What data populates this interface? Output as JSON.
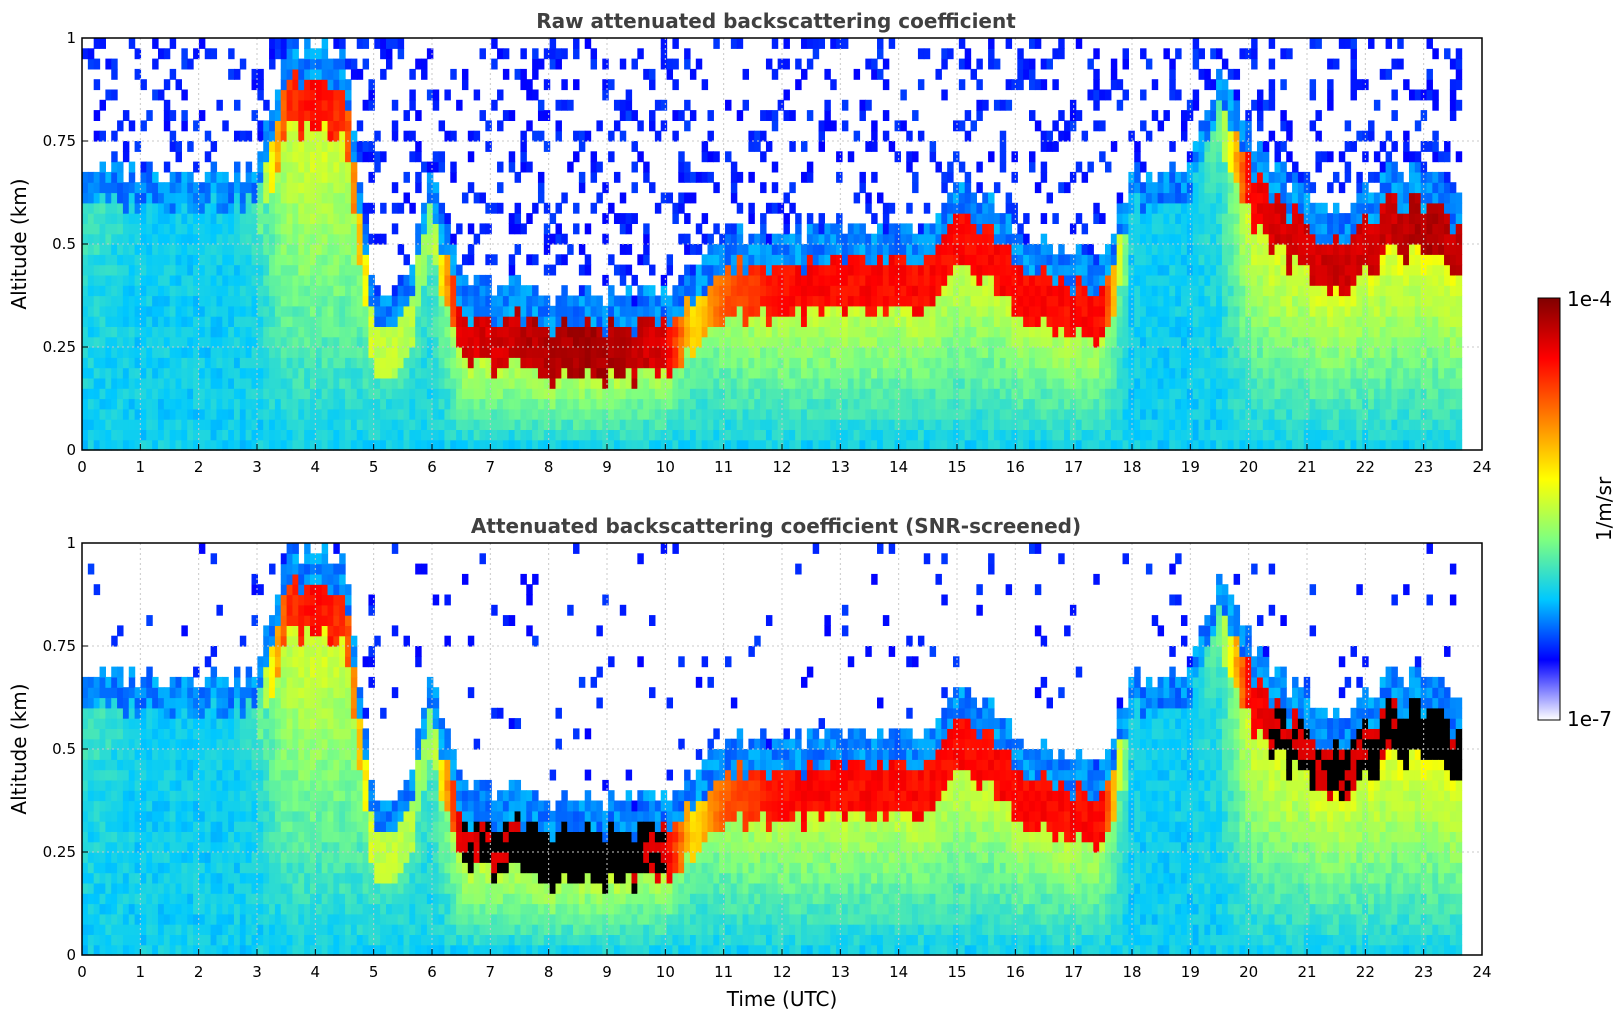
{
  "chart_data": [
    {
      "type": "heatmap",
      "title": "Raw attenuated backscattering coefficient",
      "xlabel": "",
      "ylabel": "Altitude (km)",
      "xlim": [
        0,
        24
      ],
      "ylim": [
        0,
        1
      ],
      "xticks": [
        "0",
        "1",
        "2",
        "3",
        "4",
        "5",
        "6",
        "7",
        "8",
        "9",
        "10",
        "11",
        "12",
        "13",
        "14",
        "15",
        "16",
        "17",
        "18",
        "19",
        "20",
        "21",
        "22",
        "23",
        "24"
      ],
      "yticks": [
        "0",
        "0.25",
        "0.5",
        "0.75",
        "1"
      ],
      "grid": true,
      "screened": false,
      "data_end_hour": 23.65,
      "layers": {
        "hours": [
          0,
          0.5,
          1,
          1.5,
          2,
          2.5,
          3,
          3.5,
          4,
          4.5,
          5,
          5.5,
          6,
          6.5,
          7,
          7.5,
          8,
          8.5,
          9,
          9.5,
          10,
          10.5,
          11,
          11.5,
          12,
          12.5,
          13,
          13.5,
          14,
          14.5,
          15,
          15.5,
          16,
          16.5,
          17,
          17.5,
          18,
          18.5,
          19,
          19.5,
          20,
          20.5,
          21,
          21.5,
          22,
          22.5,
          23,
          23.5
        ],
        "layer_top_km": [
          0.6,
          0.6,
          0.6,
          0.6,
          0.6,
          0.6,
          0.6,
          0.9,
          0.9,
          0.9,
          0.3,
          0.3,
          0.6,
          0.32,
          0.32,
          0.32,
          0.3,
          0.3,
          0.3,
          0.3,
          0.32,
          0.35,
          0.45,
          0.45,
          0.45,
          0.45,
          0.45,
          0.45,
          0.45,
          0.45,
          0.55,
          0.55,
          0.45,
          0.42,
          0.4,
          0.38,
          0.6,
          0.6,
          0.6,
          0.85,
          0.7,
          0.6,
          0.55,
          0.5,
          0.55,
          0.6,
          0.6,
          0.55
        ],
        "intensity": [
          0.35,
          0.35,
          0.3,
          0.3,
          0.3,
          0.3,
          0.35,
          0.8,
          0.85,
          0.8,
          0.5,
          0.5,
          0.45,
          0.9,
          0.9,
          0.92,
          0.95,
          0.95,
          0.95,
          0.92,
          0.9,
          0.6,
          0.75,
          0.8,
          0.85,
          0.85,
          0.85,
          0.85,
          0.85,
          0.85,
          0.85,
          0.85,
          0.85,
          0.85,
          0.85,
          0.85,
          0.3,
          0.3,
          0.3,
          0.4,
          0.85,
          0.9,
          0.9,
          0.92,
          0.9,
          0.92,
          0.95,
          0.92
        ]
      }
    },
    {
      "type": "heatmap",
      "title": "Attenuated backscattering coefficient (SNR-screened)",
      "xlabel": "Time (UTC)",
      "ylabel": "Altitude (km)",
      "xlim": [
        0,
        24
      ],
      "ylim": [
        0,
        1
      ],
      "xticks": [
        "0",
        "1",
        "2",
        "3",
        "4",
        "5",
        "6",
        "7",
        "8",
        "9",
        "10",
        "11",
        "12",
        "13",
        "14",
        "15",
        "16",
        "17",
        "18",
        "19",
        "20",
        "21",
        "22",
        "23",
        "24"
      ],
      "yticks": [
        "0",
        "0.25",
        "0.5",
        "0.75",
        "1"
      ],
      "grid": true,
      "screened": true,
      "data_end_hour": 23.65,
      "layers": {
        "hours": [
          0,
          0.5,
          1,
          1.5,
          2,
          2.5,
          3,
          3.5,
          4,
          4.5,
          5,
          5.5,
          6,
          6.5,
          7,
          7.5,
          8,
          8.5,
          9,
          9.5,
          10,
          10.5,
          11,
          11.5,
          12,
          12.5,
          13,
          13.5,
          14,
          14.5,
          15,
          15.5,
          16,
          16.5,
          17,
          17.5,
          18,
          18.5,
          19,
          19.5,
          20,
          20.5,
          21,
          21.5,
          22,
          22.5,
          23,
          23.5
        ],
        "layer_top_km": [
          0.6,
          0.6,
          0.6,
          0.6,
          0.6,
          0.6,
          0.6,
          0.9,
          0.9,
          0.9,
          0.3,
          0.3,
          0.6,
          0.32,
          0.32,
          0.32,
          0.3,
          0.3,
          0.3,
          0.3,
          0.32,
          0.35,
          0.45,
          0.45,
          0.45,
          0.45,
          0.45,
          0.45,
          0.45,
          0.45,
          0.55,
          0.55,
          0.45,
          0.42,
          0.4,
          0.38,
          0.6,
          0.6,
          0.6,
          0.85,
          0.7,
          0.6,
          0.55,
          0.5,
          0.55,
          0.6,
          0.6,
          0.55
        ],
        "intensity": [
          0.35,
          0.35,
          0.3,
          0.3,
          0.3,
          0.3,
          0.35,
          0.8,
          0.85,
          0.8,
          0.5,
          0.5,
          0.45,
          0.9,
          0.9,
          0.92,
          0.95,
          0.95,
          0.95,
          0.92,
          0.9,
          0.6,
          0.75,
          0.8,
          0.85,
          0.85,
          0.85,
          0.85,
          0.85,
          0.85,
          0.85,
          0.85,
          0.85,
          0.85,
          0.85,
          0.85,
          0.3,
          0.3,
          0.3,
          0.4,
          0.85,
          0.9,
          0.9,
          0.92,
          0.9,
          0.92,
          0.95,
          0.92
        ]
      }
    }
  ],
  "colorbar": {
    "label": "1/m/sr",
    "min_label": "1e-7",
    "max_label": "1e-4",
    "colormap": [
      "#ffffff",
      "#0000ff",
      "#00c8ff",
      "#7fff7f",
      "#ffff00",
      "#ff8000",
      "#ff0000",
      "#800000"
    ]
  },
  "colors": {
    "title": "#404040",
    "grid": "#c8c8c8",
    "axes": "#000000"
  }
}
